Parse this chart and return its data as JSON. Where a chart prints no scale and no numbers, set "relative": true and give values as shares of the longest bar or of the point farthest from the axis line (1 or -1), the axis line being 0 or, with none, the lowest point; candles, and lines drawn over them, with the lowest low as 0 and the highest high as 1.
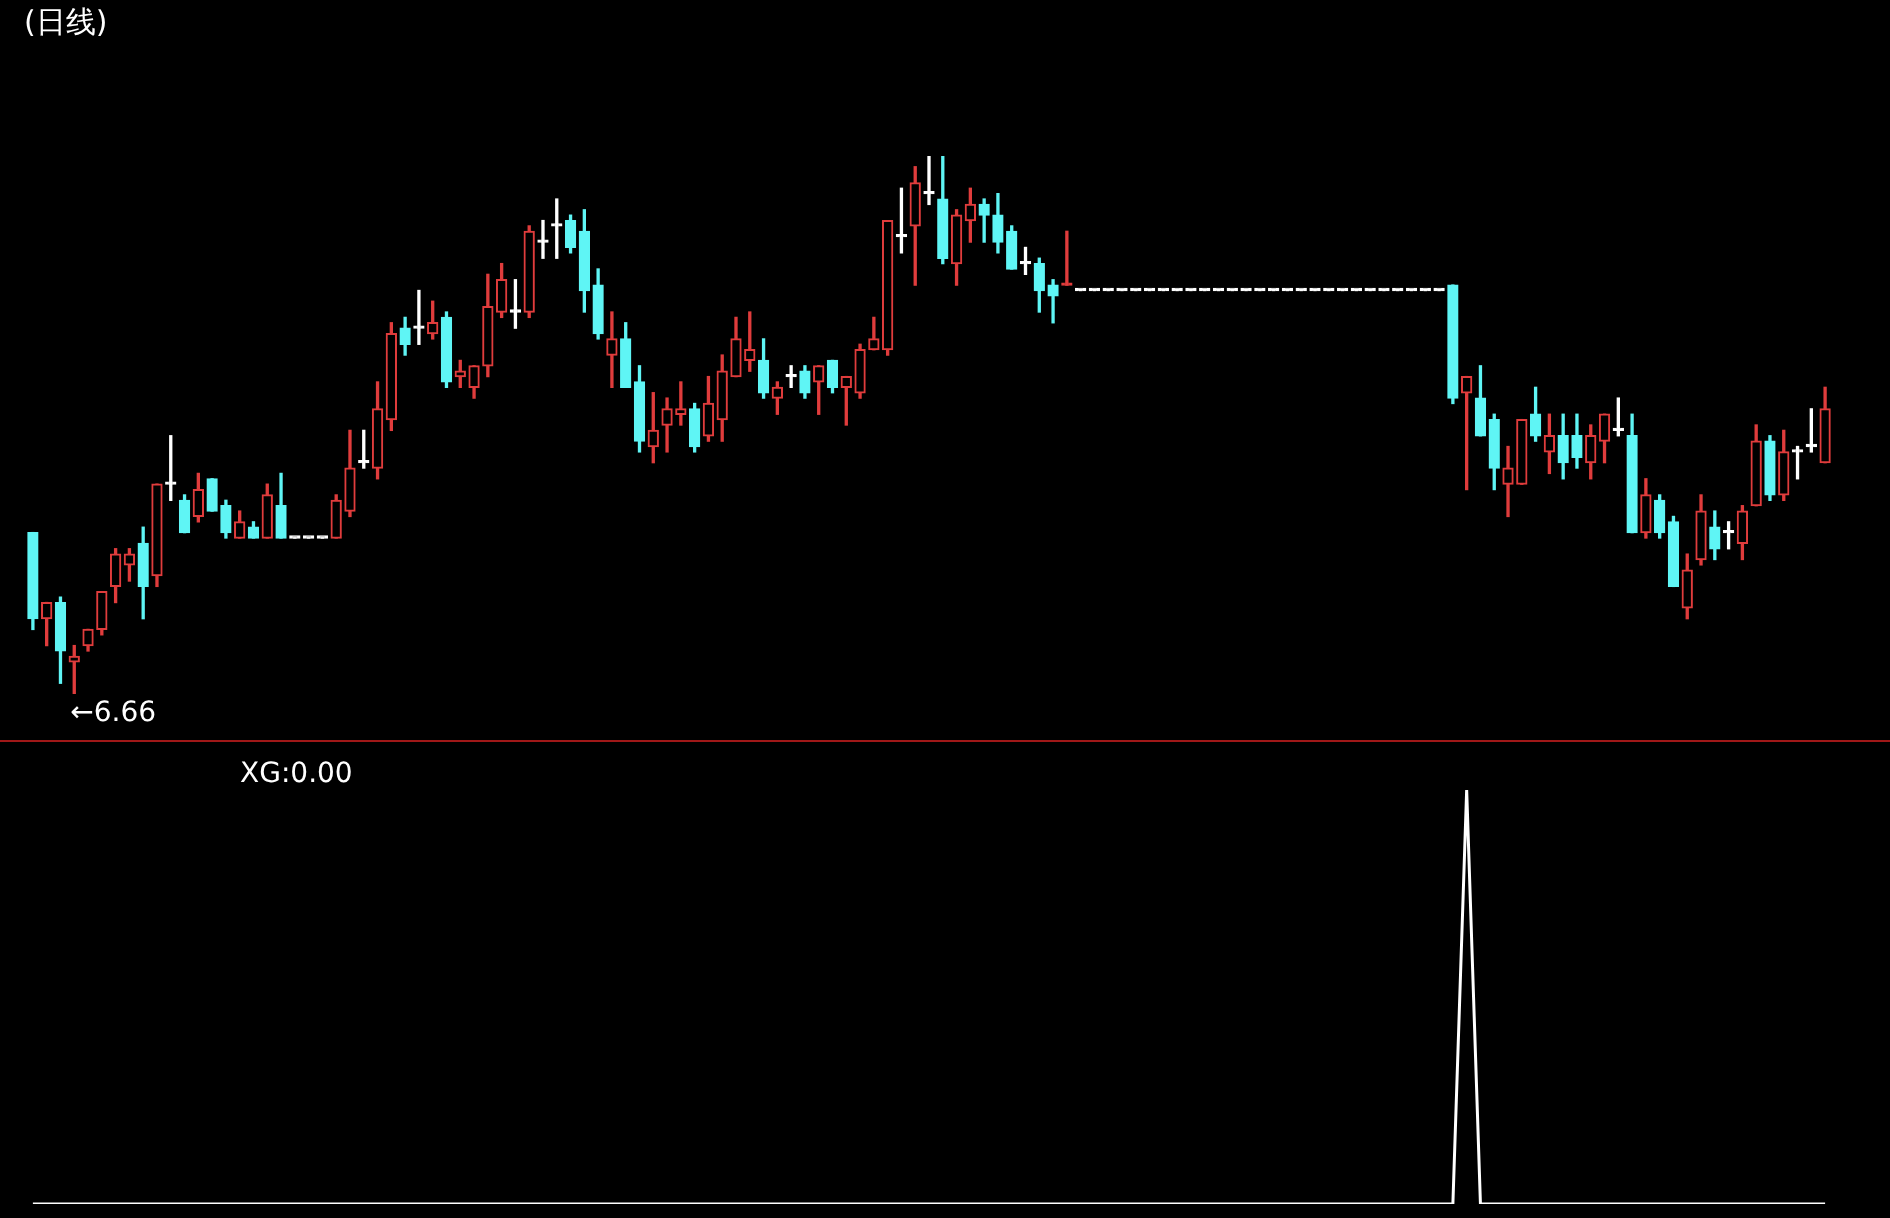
{
  "chart_data": [
    {
      "type": "candlestick",
      "title": "(日线)",
      "relative": true,
      "tick_labels": false,
      "legend": false,
      "colors": [
        "#5ff5f5",
        "#e03c3c",
        "#5ff5f5",
        "#e03c3c",
        "#e03c3c",
        "#e03c3c",
        "#e03c3c",
        "#e03c3c",
        "#5ff5f5",
        "#e03c3c",
        "#ffffff",
        "#5ff5f5",
        "#e03c3c",
        "#5ff5f5",
        "#5ff5f5",
        "#e03c3c",
        "#5ff5f5",
        "#e03c3c",
        "#5ff5f5",
        "#ffffff",
        "#ffffff",
        "#ffffff",
        "#e03c3c",
        "#e03c3c",
        "#ffffff",
        "#e03c3c",
        "#e03c3c",
        "#5ff5f5",
        "#ffffff",
        "#e03c3c",
        "#5ff5f5",
        "#e03c3c",
        "#e03c3c",
        "#e03c3c",
        "#e03c3c",
        "#ffffff",
        "#e03c3c",
        "#ffffff",
        "#ffffff",
        "#5ff5f5",
        "#5ff5f5",
        "#5ff5f5",
        "#e03c3c",
        "#5ff5f5",
        "#5ff5f5",
        "#e03c3c",
        "#e03c3c",
        "#e03c3c",
        "#5ff5f5",
        "#e03c3c",
        "#e03c3c",
        "#e03c3c",
        "#e03c3c",
        "#5ff5f5",
        "#e03c3c",
        "#ffffff",
        "#5ff5f5",
        "#e03c3c",
        "#5ff5f5",
        "#e03c3c",
        "#e03c3c",
        "#e03c3c",
        "#e03c3c",
        "#ffffff",
        "#e03c3c",
        "#ffffff",
        "#5ff5f5",
        "#e03c3c",
        "#e03c3c",
        "#5ff5f5",
        "#5ff5f5",
        "#5ff5f5",
        "#ffffff",
        "#5ff5f5",
        "#5ff5f5",
        "#e03c3c",
        "#ffffff",
        "#ffffff",
        "#ffffff",
        "#ffffff",
        "#ffffff",
        "#ffffff",
        "#ffffff",
        "#ffffff",
        "#ffffff",
        "#ffffff",
        "#ffffff",
        "#ffffff",
        "#ffffff",
        "#ffffff",
        "#ffffff",
        "#ffffff",
        "#ffffff",
        "#ffffff",
        "#ffffff",
        "#ffffff",
        "#ffffff",
        "#ffffff",
        "#ffffff",
        "#ffffff",
        "#ffffff",
        "#ffffff",
        "#ffffff",
        "#5ff5f5",
        "#e03c3c",
        "#5ff5f5",
        "#5ff5f5",
        "#e03c3c",
        "#e03c3c",
        "#5ff5f5",
        "#e03c3c",
        "#5ff5f5",
        "#5ff5f5",
        "#e03c3c",
        "#e03c3c",
        "#ffffff",
        "#5ff5f5",
        "#e03c3c",
        "#5ff5f5",
        "#5ff5f5",
        "#e03c3c",
        "#e03c3c",
        "#5ff5f5",
        "#ffffff",
        "#e03c3c",
        "#e03c3c",
        "#5ff5f5",
        "#e03c3c",
        "#ffffff",
        "#ffffff",
        "#e03c3c"
      ],
      "annotations": [
        "←6.66"
      ],
      "categories": [
        null,
        null,
        null,
        null,
        null,
        null,
        null,
        null,
        null,
        null,
        null,
        null,
        null,
        null,
        null,
        null,
        null,
        null,
        null,
        null,
        null,
        null,
        null,
        null,
        null,
        null,
        null,
        null,
        null,
        null,
        null,
        null,
        null,
        null,
        null,
        null,
        null,
        null,
        null,
        null,
        null,
        null,
        null,
        null,
        null,
        null,
        null,
        null,
        null,
        null,
        null,
        null,
        null,
        null,
        null,
        null,
        null,
        null,
        null,
        null,
        null,
        null,
        null,
        null,
        null,
        null,
        null,
        null,
        null,
        null,
        null,
        null,
        null,
        null,
        null,
        null,
        null,
        null,
        null,
        null,
        null,
        null,
        null,
        null,
        null,
        null,
        null,
        null,
        null,
        null,
        null,
        null,
        null,
        null,
        null,
        null,
        null,
        null,
        null,
        null,
        null,
        null,
        null,
        null,
        null,
        null,
        null,
        null,
        null,
        null,
        null,
        null,
        null,
        null,
        null,
        null,
        null,
        null,
        null,
        null,
        null,
        null,
        null,
        null,
        null,
        null,
        null,
        null,
        null,
        null,
        null
      ],
      "ohlc": [
        [
          0.3,
          0.3,
          0.12,
          0.14
        ],
        [
          0.14,
          0.17,
          0.09,
          0.17
        ],
        [
          0.17,
          0.18,
          0.02,
          0.08
        ],
        [
          0.06,
          0.09,
          0,
          0.07
        ],
        [
          0.09,
          0.12,
          0.08,
          0.12
        ],
        [
          0.12,
          0.19,
          0.11,
          0.19
        ],
        [
          0.2,
          0.27,
          0.17,
          0.26
        ],
        [
          0.24,
          0.27,
          0.21,
          0.26
        ],
        [
          0.28,
          0.31,
          0.14,
          0.2
        ],
        [
          0.22,
          0.39,
          0.2,
          0.39
        ],
        [
          0.39,
          0.48,
          0.36,
          0.39
        ],
        [
          0.36,
          0.37,
          0.3,
          0.3
        ],
        [
          0.33,
          0.41,
          0.32,
          0.38
        ],
        [
          0.4,
          0.4,
          0.34,
          0.34
        ],
        [
          0.35,
          0.36,
          0.29,
          0.3
        ],
        [
          0.29,
          0.34,
          0.29,
          0.32
        ],
        [
          0.31,
          0.32,
          0.29,
          0.29
        ],
        [
          0.29,
          0.39,
          0.29,
          0.37
        ],
        [
          0.35,
          0.41,
          0.29,
          0.29
        ],
        [
          0.29,
          0.29,
          0.29,
          0.29
        ],
        [
          0.29,
          0.29,
          0.29,
          0.29
        ],
        [
          0.29,
          0.29,
          0.29,
          0.29
        ],
        [
          0.29,
          0.37,
          0.29,
          0.36
        ],
        [
          0.34,
          0.49,
          0.33,
          0.42
        ],
        [
          0.43,
          0.49,
          0.42,
          0.43
        ],
        [
          0.42,
          0.58,
          0.4,
          0.53
        ],
        [
          0.51,
          0.69,
          0.49,
          0.67
        ],
        [
          0.68,
          0.7,
          0.63,
          0.65
        ],
        [
          0.68,
          0.75,
          0.65,
          0.68
        ],
        [
          0.67,
          0.73,
          0.66,
          0.69
        ],
        [
          0.7,
          0.71,
          0.57,
          0.58
        ],
        [
          0.59,
          0.62,
          0.57,
          0.6
        ],
        [
          0.57,
          0.61,
          0.55,
          0.61
        ],
        [
          0.61,
          0.78,
          0.59,
          0.72
        ],
        [
          0.71,
          0.8,
          0.7,
          0.77
        ],
        [
          0.71,
          0.77,
          0.68,
          0.71
        ],
        [
          0.71,
          0.87,
          0.7,
          0.86
        ],
        [
          0.84,
          0.88,
          0.81,
          0.84
        ],
        [
          0.87,
          0.92,
          0.81,
          0.87
        ],
        [
          0.88,
          0.89,
          0.82,
          0.83
        ],
        [
          0.86,
          0.9,
          0.71,
          0.75
        ],
        [
          0.76,
          0.79,
          0.66,
          0.67
        ],
        [
          0.63,
          0.71,
          0.57,
          0.66
        ],
        [
          0.66,
          0.69,
          0.57,
          0.57
        ],
        [
          0.58,
          0.61,
          0.45,
          0.47
        ],
        [
          0.46,
          0.56,
          0.43,
          0.49
        ],
        [
          0.5,
          0.55,
          0.45,
          0.53
        ],
        [
          0.52,
          0.58,
          0.5,
          0.53
        ],
        [
          0.53,
          0.54,
          0.45,
          0.46
        ],
        [
          0.48,
          0.59,
          0.47,
          0.54
        ],
        [
          0.51,
          0.63,
          0.47,
          0.6
        ],
        [
          0.59,
          0.7,
          0.59,
          0.66
        ],
        [
          0.62,
          0.71,
          0.6,
          0.64
        ],
        [
          0.62,
          0.66,
          0.55,
          0.56
        ],
        [
          0.55,
          0.58,
          0.52,
          0.57
        ],
        [
          0.59,
          0.61,
          0.57,
          0.59
        ],
        [
          0.6,
          0.61,
          0.55,
          0.56
        ],
        [
          0.58,
          0.61,
          0.52,
          0.61
        ],
        [
          0.62,
          0.62,
          0.56,
          0.57
        ],
        [
          0.57,
          0.59,
          0.5,
          0.59
        ],
        [
          0.56,
          0.65,
          0.55,
          0.64
        ],
        [
          0.64,
          0.7,
          0.64,
          0.66
        ],
        [
          0.64,
          0.88,
          0.63,
          0.88
        ],
        [
          0.85,
          0.94,
          0.82,
          0.85
        ],
        [
          0.87,
          0.98,
          0.76,
          0.95
        ],
        [
          0.93,
          1,
          0.91,
          0.93
        ],
        [
          0.92,
          1,
          0.8,
          0.81
        ],
        [
          0.8,
          0.9,
          0.76,
          0.89
        ],
        [
          0.88,
          0.94,
          0.84,
          0.91
        ],
        [
          0.91,
          0.92,
          0.84,
          0.89
        ],
        [
          0.89,
          0.93,
          0.82,
          0.84
        ],
        [
          0.86,
          0.87,
          0.79,
          0.79
        ],
        [
          0.8,
          0.83,
          0.78,
          0.8
        ],
        [
          0.8,
          0.81,
          0.71,
          0.75
        ],
        [
          0.76,
          0.77,
          0.69,
          0.74
        ],
        [
          0.76,
          0.86,
          0.76,
          0.76
        ],
        [
          0.75,
          0.75,
          0.75,
          0.75
        ],
        [
          0.75,
          0.75,
          0.75,
          0.75
        ],
        [
          0.75,
          0.75,
          0.75,
          0.75
        ],
        [
          0.75,
          0.75,
          0.75,
          0.75
        ],
        [
          0.75,
          0.75,
          0.75,
          0.75
        ],
        [
          0.75,
          0.75,
          0.75,
          0.75
        ],
        [
          0.75,
          0.75,
          0.75,
          0.75
        ],
        [
          0.75,
          0.75,
          0.75,
          0.75
        ],
        [
          0.75,
          0.75,
          0.75,
          0.75
        ],
        [
          0.75,
          0.75,
          0.75,
          0.75
        ],
        [
          0.75,
          0.75,
          0.75,
          0.75
        ],
        [
          0.75,
          0.75,
          0.75,
          0.75
        ],
        [
          0.75,
          0.75,
          0.75,
          0.75
        ],
        [
          0.75,
          0.75,
          0.75,
          0.75
        ],
        [
          0.75,
          0.75,
          0.75,
          0.75
        ],
        [
          0.75,
          0.75,
          0.75,
          0.75
        ],
        [
          0.75,
          0.75,
          0.75,
          0.75
        ],
        [
          0.75,
          0.75,
          0.75,
          0.75
        ],
        [
          0.75,
          0.75,
          0.75,
          0.75
        ],
        [
          0.75,
          0.75,
          0.75,
          0.75
        ],
        [
          0.75,
          0.75,
          0.75,
          0.75
        ],
        [
          0.75,
          0.75,
          0.75,
          0.75
        ],
        [
          0.75,
          0.75,
          0.75,
          0.75
        ],
        [
          0.75,
          0.75,
          0.75,
          0.75
        ],
        [
          0.75,
          0.75,
          0.75,
          0.75
        ],
        [
          0.75,
          0.75,
          0.75,
          0.75
        ],
        [
          0.75,
          0.75,
          0.75,
          0.75
        ],
        [
          0.76,
          0.76,
          0.54,
          0.55
        ],
        [
          0.56,
          0.59,
          0.38,
          0.59
        ],
        [
          0.55,
          0.61,
          0.48,
          0.48
        ],
        [
          0.51,
          0.52,
          0.38,
          0.42
        ],
        [
          0.39,
          0.46,
          0.33,
          0.42
        ],
        [
          0.39,
          0.51,
          0.39,
          0.51
        ],
        [
          0.52,
          0.57,
          0.47,
          0.48
        ],
        [
          0.45,
          0.52,
          0.41,
          0.48
        ],
        [
          0.48,
          0.52,
          0.4,
          0.43
        ],
        [
          0.48,
          0.52,
          0.42,
          0.44
        ],
        [
          0.43,
          0.5,
          0.4,
          0.48
        ],
        [
          0.47,
          0.52,
          0.43,
          0.52
        ],
        [
          0.49,
          0.55,
          0.48,
          0.49
        ],
        [
          0.48,
          0.52,
          0.3,
          0.3
        ],
        [
          0.3,
          0.4,
          0.29,
          0.37
        ],
        [
          0.36,
          0.37,
          0.29,
          0.3
        ],
        [
          0.32,
          0.33,
          0.2,
          0.2
        ],
        [
          0.16,
          0.26,
          0.14,
          0.23
        ],
        [
          0.25,
          0.37,
          0.24,
          0.34
        ],
        [
          0.31,
          0.34,
          0.25,
          0.27
        ],
        [
          0.3,
          0.32,
          0.27,
          0.3
        ],
        [
          0.28,
          0.35,
          0.25,
          0.34
        ],
        [
          0.35,
          0.5,
          0.35,
          0.47
        ],
        [
          0.47,
          0.48,
          0.36,
          0.37
        ],
        [
          0.37,
          0.49,
          0.36,
          0.45
        ],
        [
          0.45,
          0.46,
          0.4,
          0.45
        ],
        [
          0.46,
          0.53,
          0.45,
          0.46
        ],
        [
          0.43,
          0.57,
          0.43,
          0.53
        ]
      ]
    },
    {
      "type": "line",
      "relative": true,
      "tick_labels": false,
      "legend": false,
      "marker": "none",
      "annotations": [
        "XG:0.00"
      ],
      "categories": [
        null,
        null,
        null,
        null,
        null,
        null,
        null,
        null,
        null,
        null,
        null,
        null,
        null,
        null,
        null,
        null,
        null,
        null,
        null,
        null,
        null,
        null,
        null,
        null,
        null,
        null,
        null,
        null,
        null,
        null,
        null,
        null,
        null,
        null,
        null,
        null,
        null,
        null,
        null,
        null,
        null,
        null,
        null,
        null,
        null,
        null,
        null,
        null,
        null,
        null,
        null,
        null,
        null,
        null,
        null,
        null,
        null,
        null,
        null,
        null,
        null,
        null,
        null,
        null,
        null,
        null,
        null,
        null,
        null,
        null,
        null,
        null,
        null,
        null,
        null,
        null,
        null,
        null,
        null,
        null,
        null,
        null,
        null,
        null,
        null,
        null,
        null,
        null,
        null,
        null,
        null,
        null,
        null,
        null,
        null,
        null,
        null,
        null,
        null,
        null,
        null,
        null,
        null,
        null,
        null,
        null,
        null,
        null,
        null,
        null,
        null,
        null,
        null,
        null,
        null,
        null,
        null,
        null,
        null,
        null,
        null,
        null,
        null,
        null,
        null,
        null,
        null,
        null,
        null,
        null,
        null
      ],
      "series": [
        {
          "color": "#ffffff",
          "values": [
            0,
            0,
            0,
            0,
            0,
            0,
            0,
            0,
            0,
            0,
            0,
            0,
            0,
            0,
            0,
            0,
            0,
            0,
            0,
            0,
            0,
            0,
            0,
            0,
            0,
            0,
            0,
            0,
            0,
            0,
            0,
            0,
            0,
            0,
            0,
            0,
            0,
            0,
            0,
            0,
            0,
            0,
            0,
            0,
            0,
            0,
            0,
            0,
            0,
            0,
            0,
            0,
            0,
            0,
            0,
            0,
            0,
            0,
            0,
            0,
            0,
            0,
            0,
            0,
            0,
            0,
            0,
            0,
            0,
            0,
            0,
            0,
            0,
            0,
            0,
            0,
            0,
            0,
            0,
            0,
            0,
            0,
            0,
            0,
            0,
            0,
            0,
            0,
            0,
            0,
            0,
            0,
            0,
            0,
            0,
            0,
            0,
            0,
            0,
            0,
            0,
            0,
            0,
            0,
            1,
            0,
            0,
            0,
            0,
            0,
            0,
            0,
            0,
            0,
            0,
            0,
            0,
            0,
            0,
            0,
            0,
            0,
            0,
            0,
            0,
            0,
            0,
            0,
            0,
            0,
            0
          ]
        }
      ]
    }
  ]
}
